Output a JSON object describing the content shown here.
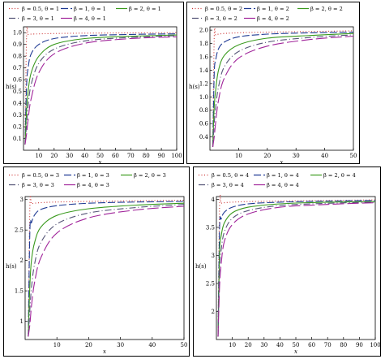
{
  "chart_data": [
    {
      "type": "line",
      "ylabel": "h(s)",
      "xlabel": "x",
      "xlim": [
        0,
        100
      ],
      "ylim": [
        0,
        1.05
      ],
      "xticks": [
        "10",
        "20",
        "30",
        "40",
        "50",
        "60",
        "70",
        "80",
        "90",
        "100"
      ],
      "yticks": [
        "0.1",
        "0.2",
        "0.3",
        "0.4",
        "0.5",
        "0.6",
        "0.7",
        "0.8",
        "0.9",
        "1.0"
      ],
      "legend_position": "top",
      "series": [
        {
          "name": "β = 0.5, θ = 1",
          "color": "#cc3333",
          "dash": "1,2.5",
          "x": [
            1,
            2,
            3,
            5,
            10,
            20,
            40,
            70,
            100
          ],
          "values": [
            0.05,
            0.98,
            0.985,
            0.988,
            0.99,
            0.993,
            0.996,
            0.998,
            1.0
          ]
        },
        {
          "name": "β = 1, θ = 1",
          "color": "#1f3a93",
          "dash": "9,3",
          "x": [
            1,
            2,
            3,
            5,
            10,
            20,
            40,
            70,
            100
          ],
          "values": [
            0.05,
            0.55,
            0.7,
            0.82,
            0.9,
            0.95,
            0.975,
            0.985,
            0.99
          ]
        },
        {
          "name": "β = 2, θ = 1",
          "color": "#3a9a1e",
          "dash": "",
          "x": [
            1,
            2,
            3,
            5,
            10,
            20,
            40,
            70,
            100
          ],
          "values": [
            0.05,
            0.34,
            0.5,
            0.66,
            0.8,
            0.9,
            0.95,
            0.97,
            0.98
          ]
        },
        {
          "name": "β = 3, θ = 1",
          "color": "#555577",
          "dash": "8,3,1,3",
          "x": [
            1,
            2,
            3,
            5,
            10,
            20,
            40,
            70,
            100
          ],
          "values": [
            0.05,
            0.22,
            0.38,
            0.56,
            0.74,
            0.86,
            0.93,
            0.96,
            0.975
          ]
        },
        {
          "name": "β = 4, θ = 1",
          "color": "#a0249a",
          "dash": "14,4",
          "x": [
            1,
            2,
            3,
            5,
            10,
            20,
            40,
            70,
            100
          ],
          "values": [
            0.05,
            0.14,
            0.26,
            0.44,
            0.66,
            0.82,
            0.91,
            0.95,
            0.965
          ]
        }
      ]
    },
    {
      "type": "line",
      "ylabel": "h(s)",
      "xlabel": "x",
      "xlim": [
        0,
        50
      ],
      "ylim": [
        0.2,
        2.05
      ],
      "xticks": [
        "10",
        "20",
        "30",
        "40",
        "50"
      ],
      "yticks": [
        "0.4",
        "0.6",
        "0.8",
        "1.0",
        "1.2",
        "1.4",
        "1.6",
        "1.8",
        "2.0"
      ],
      "legend_position": "top",
      "series": [
        {
          "name": "β = 0.5, θ = 2",
          "color": "#cc3333",
          "dash": "1,2.5",
          "x": [
            1,
            1.5,
            2,
            3,
            5,
            10,
            20,
            35,
            50
          ],
          "values": [
            0.25,
            1.9,
            1.93,
            1.94,
            1.95,
            1.96,
            1.97,
            1.98,
            1.99
          ]
        },
        {
          "name": "β = 1, θ = 2",
          "color": "#1f3a93",
          "dash": "9,3",
          "x": [
            1,
            1.5,
            2,
            3,
            5,
            10,
            20,
            35,
            50
          ],
          "values": [
            0.25,
            1.35,
            1.55,
            1.72,
            1.82,
            1.9,
            1.94,
            1.96,
            1.97
          ]
        },
        {
          "name": "β = 2, θ = 2",
          "color": "#3a9a1e",
          "dash": "",
          "x": [
            1,
            1.5,
            2,
            3,
            5,
            10,
            20,
            35,
            50
          ],
          "values": [
            0.25,
            0.85,
            1.1,
            1.4,
            1.62,
            1.78,
            1.88,
            1.92,
            1.95
          ]
        },
        {
          "name": "β = 3, θ = 2",
          "color": "#555577",
          "dash": "8,3,1,3",
          "x": [
            1,
            1.5,
            2,
            3,
            5,
            10,
            20,
            35,
            50
          ],
          "values": [
            0.25,
            0.6,
            0.85,
            1.15,
            1.45,
            1.68,
            1.82,
            1.89,
            1.93
          ]
        },
        {
          "name": "β = 4, θ = 2",
          "color": "#a0249a",
          "dash": "14,4",
          "x": [
            1,
            1.5,
            2,
            3,
            5,
            10,
            20,
            35,
            50
          ],
          "values": [
            0.25,
            0.4,
            0.62,
            0.95,
            1.28,
            1.58,
            1.76,
            1.86,
            1.91
          ]
        }
      ]
    },
    {
      "type": "line",
      "ylabel": "h(s)",
      "xlabel": "x",
      "xlim": [
        0,
        50
      ],
      "ylim": [
        0.7,
        3.05
      ],
      "xticks": [
        "10",
        "20",
        "30",
        "40",
        "50"
      ],
      "yticks": [
        "1",
        "1.5",
        "2",
        "2.5",
        "3"
      ],
      "legend_position": "top",
      "series": [
        {
          "name": "β = 0.5, θ = 3",
          "color": "#cc3333",
          "dash": "1,2.5",
          "x": [
            1,
            1.5,
            2,
            3,
            5,
            10,
            20,
            35,
            50
          ],
          "values": [
            0.75,
            2.9,
            2.93,
            2.94,
            2.95,
            2.96,
            2.97,
            2.98,
            2.99
          ]
        },
        {
          "name": "β = 1, θ = 3",
          "color": "#1f3a93",
          "dash": "9,3",
          "x": [
            1,
            1.5,
            2,
            3,
            5,
            10,
            20,
            35,
            50
          ],
          "values": [
            0.75,
            2.5,
            2.62,
            2.75,
            2.84,
            2.9,
            2.94,
            2.96,
            2.97
          ]
        },
        {
          "name": "β = 2, θ = 3",
          "color": "#3a9a1e",
          "dash": "",
          "x": [
            1,
            1.5,
            2,
            3,
            5,
            10,
            20,
            35,
            50
          ],
          "values": [
            0.75,
            1.6,
            2.0,
            2.3,
            2.55,
            2.74,
            2.85,
            2.91,
            2.94
          ]
        },
        {
          "name": "β = 3, θ = 3",
          "color": "#555577",
          "dash": "8,3,1,3",
          "x": [
            1,
            1.5,
            2,
            3,
            5,
            10,
            20,
            35,
            50
          ],
          "values": [
            0.75,
            1.2,
            1.55,
            1.95,
            2.3,
            2.6,
            2.78,
            2.87,
            2.92
          ]
        },
        {
          "name": "β = 4, θ = 3",
          "color": "#a0249a",
          "dash": "14,4",
          "x": [
            1,
            1.5,
            2,
            3,
            5,
            10,
            20,
            35,
            50
          ],
          "values": [
            0.75,
            0.95,
            1.25,
            1.65,
            2.05,
            2.45,
            2.7,
            2.83,
            2.89
          ]
        }
      ]
    },
    {
      "type": "line",
      "ylabel": "h(s)",
      "xlabel": "x",
      "xlim": [
        0,
        100
      ],
      "ylim": [
        1.5,
        4.05
      ],
      "xticks": [
        "10",
        "20",
        "30",
        "40",
        "50",
        "60",
        "70",
        "80",
        "90",
        "100"
      ],
      "yticks": [
        "2",
        "2.5",
        "3",
        "3.5",
        "4"
      ],
      "legend_position": "top",
      "series": [
        {
          "name": "β = 0.5, θ = 4",
          "color": "#cc3333",
          "dash": "1,2.5",
          "x": [
            1,
            2,
            3,
            5,
            10,
            20,
            40,
            70,
            100
          ],
          "values": [
            1.55,
            3.9,
            3.93,
            3.94,
            3.95,
            3.96,
            3.97,
            3.98,
            3.99
          ]
        },
        {
          "name": "β = 1, θ = 4",
          "color": "#1f3a93",
          "dash": "9,3",
          "x": [
            1,
            2,
            3,
            5,
            10,
            20,
            40,
            70,
            100
          ],
          "values": [
            1.55,
            3.5,
            3.65,
            3.77,
            3.86,
            3.92,
            3.95,
            3.97,
            3.98
          ]
        },
        {
          "name": "β = 2, θ = 4",
          "color": "#3a9a1e",
          "dash": "",
          "x": [
            1,
            2,
            3,
            5,
            10,
            20,
            40,
            70,
            100
          ],
          "values": [
            1.55,
            3.05,
            3.35,
            3.58,
            3.76,
            3.86,
            3.92,
            3.95,
            3.96
          ]
        },
        {
          "name": "β = 3, θ = 4",
          "color": "#555577",
          "dash": "8,3,1,3",
          "x": [
            1,
            2,
            3,
            5,
            10,
            20,
            40,
            70,
            100
          ],
          "values": [
            1.55,
            2.75,
            3.1,
            3.42,
            3.66,
            3.8,
            3.89,
            3.93,
            3.95
          ]
        },
        {
          "name": "β = 4, θ = 4",
          "color": "#a0249a",
          "dash": "14,4",
          "x": [
            1,
            2,
            3,
            5,
            10,
            20,
            40,
            70,
            100
          ],
          "values": [
            1.55,
            2.45,
            2.85,
            3.25,
            3.55,
            3.74,
            3.86,
            3.91,
            3.94
          ]
        }
      ]
    }
  ]
}
